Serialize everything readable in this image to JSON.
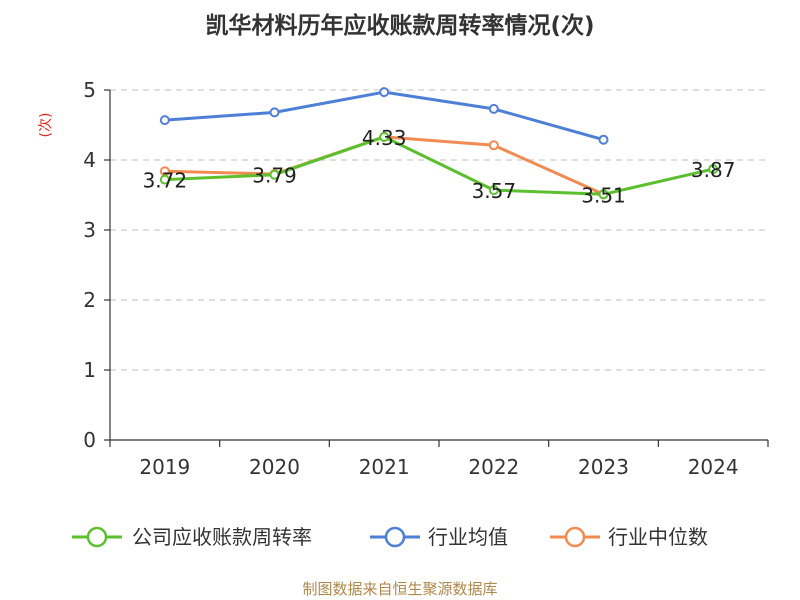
{
  "chart_data": {
    "type": "line",
    "title": "凯华材料历年应收账款周转率情况(次)",
    "ylabel": "(次)",
    "xlabel": "",
    "categories": [
      "2019",
      "2020",
      "2021",
      "2022",
      "2023",
      "2024"
    ],
    "ylim": [
      0,
      5
    ],
    "yticks": [
      "0",
      "1",
      "2",
      "3",
      "4",
      "5"
    ],
    "grid": true,
    "legend_position": "bottom",
    "series": [
      {
        "name": "公司应收账款周转率",
        "color": "#5cc02e",
        "values": [
          3.72,
          3.79,
          4.33,
          3.57,
          3.51,
          3.87
        ],
        "labels": [
          "3.72",
          "3.79",
          "4.33",
          "3.57",
          "3.51",
          "3.87"
        ]
      },
      {
        "name": "行业均值",
        "color": "#4e7fd6",
        "values": [
          4.57,
          4.68,
          4.97,
          4.73,
          4.29,
          null
        ]
      },
      {
        "name": "行业中位数",
        "color": "#f28b52",
        "values": [
          3.84,
          3.8,
          4.33,
          4.21,
          3.51,
          null
        ]
      }
    ],
    "source": "制图数据来自恒生聚源数据库"
  }
}
